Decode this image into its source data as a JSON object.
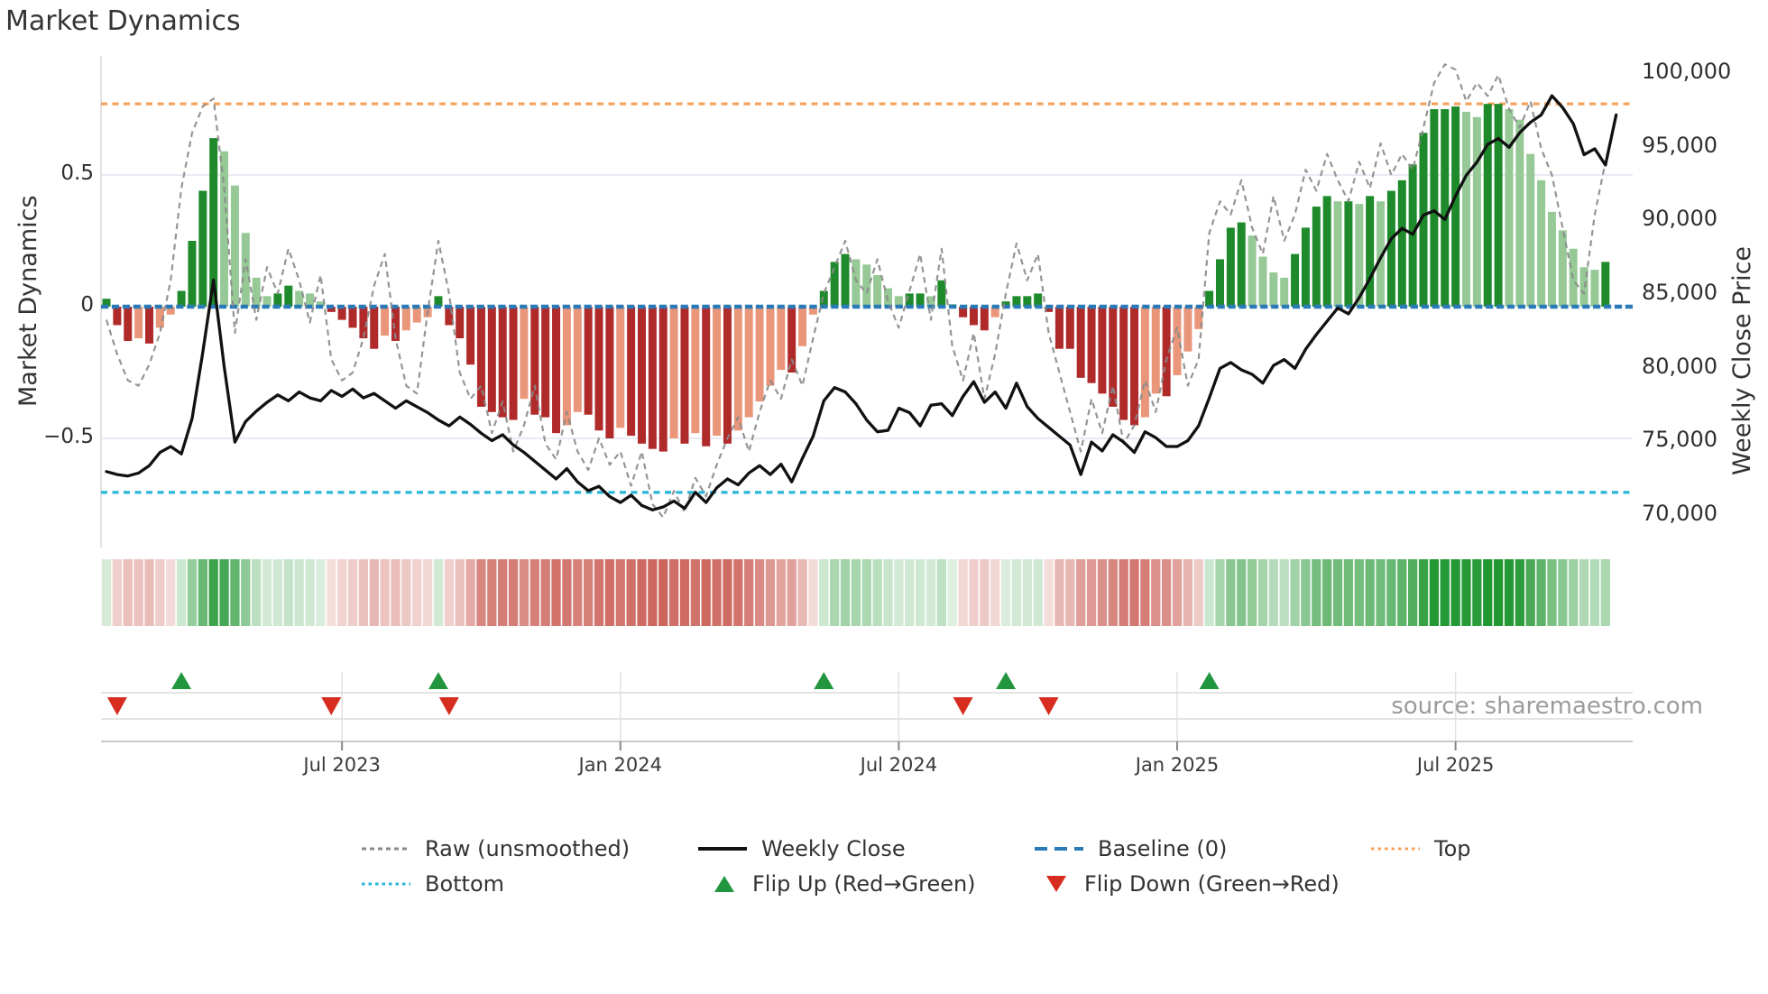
{
  "title": "Market Dynamics",
  "source": "source: sharemaestro.com",
  "axes": {
    "left_label": "Market Dynamics",
    "right_label": "Weekly Close Price",
    "left_ticks": [
      {
        "label": "0.5",
        "value": 0.5
      },
      {
        "label": "0",
        "value": 0
      },
      {
        "label": "−0.5",
        "value": -0.5
      }
    ],
    "right_ticks": [
      {
        "label": "100,000",
        "value": 100000
      },
      {
        "label": "95,000",
        "value": 95000
      },
      {
        "label": "90,000",
        "value": 90000
      },
      {
        "label": "85,000",
        "value": 85000
      },
      {
        "label": "80,000",
        "value": 80000
      },
      {
        "label": "75,000",
        "value": 75000
      },
      {
        "label": "70,000",
        "value": 70000
      }
    ],
    "x_ticks": [
      {
        "label": "Jul 2023",
        "week": 22
      },
      {
        "label": "Jan 2024",
        "week": 48
      },
      {
        "label": "Jul 2024",
        "week": 74
      },
      {
        "label": "Jan 2025",
        "week": 100
      },
      {
        "label": "Jul 2025",
        "week": 126
      }
    ]
  },
  "colors": {
    "pos_dark": "#1e8a2b",
    "pos_light": "#96c996",
    "neg_dark": "#b02a2a",
    "neg_light": "#e9967a",
    "baseline": "#2a7ab8",
    "top_line": "#f5a35c",
    "bottom_line": "#29b6d8",
    "raw_line": "#8a8a8a",
    "price_line": "#111111",
    "flip_up": "#21963f",
    "flip_down": "#d62d20",
    "grid": "#e8ebf3",
    "spine": "#d8d8d8",
    "panel_line": "#dcdcdc",
    "axis_line": "#c9c9c9"
  },
  "legend": [
    {
      "label": "Raw (unsmoothed)",
      "type": "dashed",
      "color": "#8a8a8a"
    },
    {
      "label": "Weekly Close",
      "type": "solid",
      "color": "#111111"
    },
    {
      "label": "Baseline (0)",
      "type": "dashes",
      "color": "#2a7ab8"
    },
    {
      "label": "Top",
      "type": "dotted",
      "color": "#f5a35c"
    },
    {
      "label": "Bottom",
      "type": "dotted",
      "color": "#29b6d8"
    },
    {
      "label": "Flip Up (Red→Green)",
      "type": "tri-up",
      "color": "#21963f"
    },
    {
      "label": "Flip Down (Green→Red)",
      "type": "tri-down",
      "color": "#d62d20"
    }
  ],
  "chart_data": {
    "type": "bar",
    "x_unit": "week_index",
    "n_weeks": 141,
    "ylim_left": [
      -0.91,
      0.95
    ],
    "ylim_right": [
      67700,
      101100
    ],
    "levels": {
      "baseline": 0,
      "top": 0.77,
      "bottom": -0.705
    },
    "flip_up_weeks": [
      7,
      31,
      67,
      84,
      103
    ],
    "flip_down_weeks": [
      1,
      21,
      32,
      80,
      88
    ],
    "heatmap": "cells colored from oscillator values (green positive, red negative, intensity = |value|)",
    "series": [
      {
        "name": "Market Dynamics (smoothed bars)",
        "type": "bar",
        "axis": "left",
        "values": [
          0.03,
          -0.07,
          -0.13,
          -0.12,
          -0.14,
          -0.08,
          -0.03,
          0.06,
          0.25,
          0.44,
          0.64,
          0.59,
          0.46,
          0.28,
          0.11,
          0.04,
          0.05,
          0.08,
          0.06,
          0.05,
          0.02,
          -0.02,
          -0.05,
          -0.08,
          -0.12,
          -0.16,
          -0.11,
          -0.13,
          -0.09,
          -0.06,
          -0.04,
          0.04,
          -0.07,
          -0.12,
          -0.22,
          -0.38,
          -0.4,
          -0.42,
          -0.43,
          -0.35,
          -0.41,
          -0.42,
          -0.48,
          -0.45,
          -0.4,
          -0.41,
          -0.47,
          -0.5,
          -0.46,
          -0.49,
          -0.52,
          -0.54,
          -0.55,
          -0.5,
          -0.52,
          -0.48,
          -0.53,
          -0.49,
          -0.52,
          -0.47,
          -0.42,
          -0.36,
          -0.3,
          -0.24,
          -0.25,
          -0.15,
          -0.03,
          0.06,
          0.17,
          0.2,
          0.18,
          0.16,
          0.12,
          0.07,
          0.04,
          0.05,
          0.05,
          0.04,
          0.1,
          0.01,
          -0.04,
          -0.07,
          -0.09,
          -0.04,
          0.02,
          0.04,
          0.04,
          0.05,
          -0.02,
          -0.16,
          -0.16,
          -0.27,
          -0.29,
          -0.33,
          -0.38,
          -0.43,
          -0.45,
          -0.42,
          -0.33,
          -0.34,
          -0.26,
          -0.17,
          -0.085,
          0.06,
          0.18,
          0.3,
          0.32,
          0.27,
          0.19,
          0.13,
          0.11,
          0.2,
          0.3,
          0.38,
          0.42,
          0.4,
          0.4,
          0.39,
          0.42,
          0.4,
          0.44,
          0.48,
          0.54,
          0.66,
          0.75,
          0.75,
          0.76,
          0.74,
          0.72,
          0.77,
          0.77,
          0.75,
          0.71,
          0.58,
          0.48,
          0.36,
          0.29,
          0.22,
          0.15,
          0.14,
          0.17
        ]
      },
      {
        "name": "Raw (unsmoothed)",
        "type": "line",
        "axis": "left",
        "values": [
          -0.05,
          -0.18,
          -0.28,
          -0.3,
          -0.22,
          -0.1,
          0.1,
          0.45,
          0.66,
          0.76,
          0.79,
          0.45,
          -0.1,
          0.18,
          -0.05,
          0.15,
          0.05,
          0.22,
          0.1,
          -0.06,
          0.12,
          -0.2,
          -0.28,
          -0.25,
          -0.12,
          0.08,
          0.2,
          -0.12,
          -0.3,
          -0.33,
          -0.02,
          0.25,
          0.05,
          -0.25,
          -0.35,
          -0.3,
          -0.48,
          -0.36,
          -0.55,
          -0.45,
          -0.3,
          -0.52,
          -0.58,
          -0.4,
          -0.55,
          -0.62,
          -0.5,
          -0.6,
          -0.55,
          -0.68,
          -0.55,
          -0.75,
          -0.8,
          -0.7,
          -0.78,
          -0.65,
          -0.72,
          -0.6,
          -0.5,
          -0.42,
          -0.55,
          -0.4,
          -0.28,
          -0.35,
          -0.2,
          -0.3,
          -0.12,
          0.05,
          0.15,
          0.25,
          0.1,
          0.05,
          0.18,
          0.02,
          -0.08,
          0.06,
          0.2,
          -0.05,
          0.22,
          -0.15,
          -0.28,
          -0.1,
          -0.35,
          -0.18,
          0.05,
          0.24,
          0.1,
          0.2,
          -0.1,
          -0.25,
          -0.4,
          -0.55,
          -0.35,
          -0.48,
          -0.3,
          -0.52,
          -0.45,
          -0.28,
          -0.4,
          -0.2,
          -0.08,
          -0.3,
          -0.2,
          0.28,
          0.4,
          0.35,
          0.48,
          0.3,
          0.2,
          0.42,
          0.25,
          0.35,
          0.52,
          0.44,
          0.58,
          0.48,
          0.4,
          0.55,
          0.45,
          0.62,
          0.5,
          0.58,
          0.52,
          0.68,
          0.85,
          0.92,
          0.9,
          0.78,
          0.85,
          0.8,
          0.88,
          0.75,
          0.68,
          0.78,
          0.6,
          0.5,
          0.3,
          0.1,
          0.05,
          0.35,
          0.55
        ]
      },
      {
        "name": "Weekly Close",
        "type": "line",
        "axis": "right",
        "values": [
          72900,
          72700,
          72600,
          72800,
          73300,
          74200,
          74600,
          74100,
          76500,
          81000,
          85900,
          80000,
          74900,
          76300,
          77000,
          77600,
          78100,
          77700,
          78300,
          77900,
          77700,
          78400,
          78000,
          78500,
          77900,
          78200,
          77700,
          77200,
          77700,
          77300,
          76900,
          76400,
          76000,
          76600,
          76100,
          75500,
          75000,
          75400,
          74700,
          74200,
          73600,
          73000,
          72400,
          73100,
          72200,
          71600,
          71900,
          71200,
          70800,
          71300,
          70600,
          70300,
          70500,
          70900,
          70400,
          71500,
          70800,
          71800,
          72400,
          72000,
          72800,
          73300,
          72700,
          73400,
          72200,
          73800,
          75300,
          77700,
          78600,
          78300,
          77500,
          76400,
          75600,
          75700,
          77200,
          76900,
          76000,
          77400,
          77500,
          76700,
          78000,
          79000,
          77600,
          78300,
          77200,
          78900,
          77300,
          76500,
          75900,
          75300,
          74700,
          72700,
          74900,
          74300,
          75400,
          74900,
          74200,
          75600,
          75200,
          74600,
          74600,
          75000,
          76000,
          77900,
          79900,
          80300,
          79800,
          79500,
          78900,
          80100,
          80500,
          79900,
          81200,
          82200,
          83100,
          84000,
          83600,
          84700,
          86000,
          87400,
          88700,
          89400,
          89000,
          90300,
          90600,
          90000,
          91600,
          93000,
          93900,
          95100,
          95500,
          94900,
          95900,
          96600,
          97100,
          98400,
          97600,
          96500,
          94400,
          94800,
          93700,
          97100
        ]
      }
    ]
  }
}
